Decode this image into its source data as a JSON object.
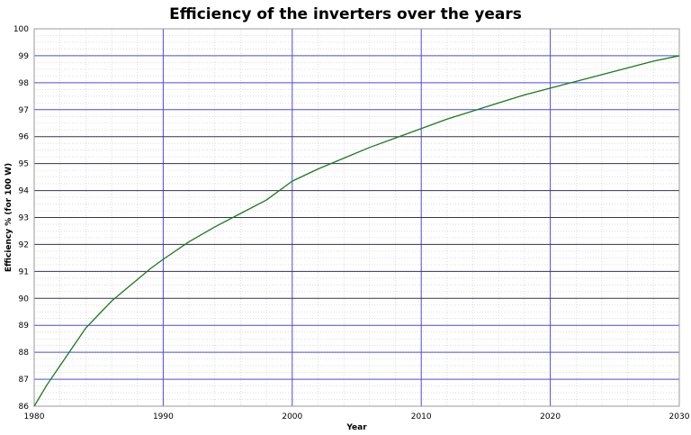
{
  "chart_data": {
    "type": "line",
    "title": "Efficiency of the inverters over the years",
    "xlabel": "Year",
    "ylabel": "Efficiency % (for 100 W)",
    "xlim": [
      1980,
      2030
    ],
    "ylim": [
      86,
      100
    ],
    "x_ticks": [
      1980,
      1990,
      2000,
      2010,
      2020,
      2030
    ],
    "y_ticks": [
      86,
      87,
      88,
      89,
      90,
      91,
      92,
      93,
      94,
      95,
      96,
      97,
      98,
      99,
      100
    ],
    "grid": true,
    "legend": "none",
    "colors": {
      "line": "#1a7a1a",
      "major_grid_blue": "#4a4aee",
      "major_grid_dark": "#333355",
      "minor_grid": "#c8c8c8"
    },
    "series": [
      {
        "x": [
          1980,
          1981,
          1982,
          1983,
          1984,
          1985,
          1986,
          1987,
          1988,
          1989,
          1990,
          1992,
          1994,
          1996,
          1998,
          2000,
          2002,
          2004,
          2006,
          2008,
          2010,
          2012,
          2014,
          2016,
          2018,
          2020,
          2022,
          2024,
          2026,
          2028,
          2030
        ],
        "y": [
          86.0,
          86.8,
          87.5,
          88.2,
          88.9,
          89.4,
          89.9,
          90.3,
          90.7,
          91.1,
          91.45,
          92.1,
          92.65,
          93.15,
          93.65,
          94.35,
          94.8,
          95.2,
          95.6,
          95.95,
          96.3,
          96.65,
          96.95,
          97.25,
          97.55,
          97.8,
          98.05,
          98.3,
          98.55,
          98.8,
          99.0
        ]
      }
    ]
  }
}
